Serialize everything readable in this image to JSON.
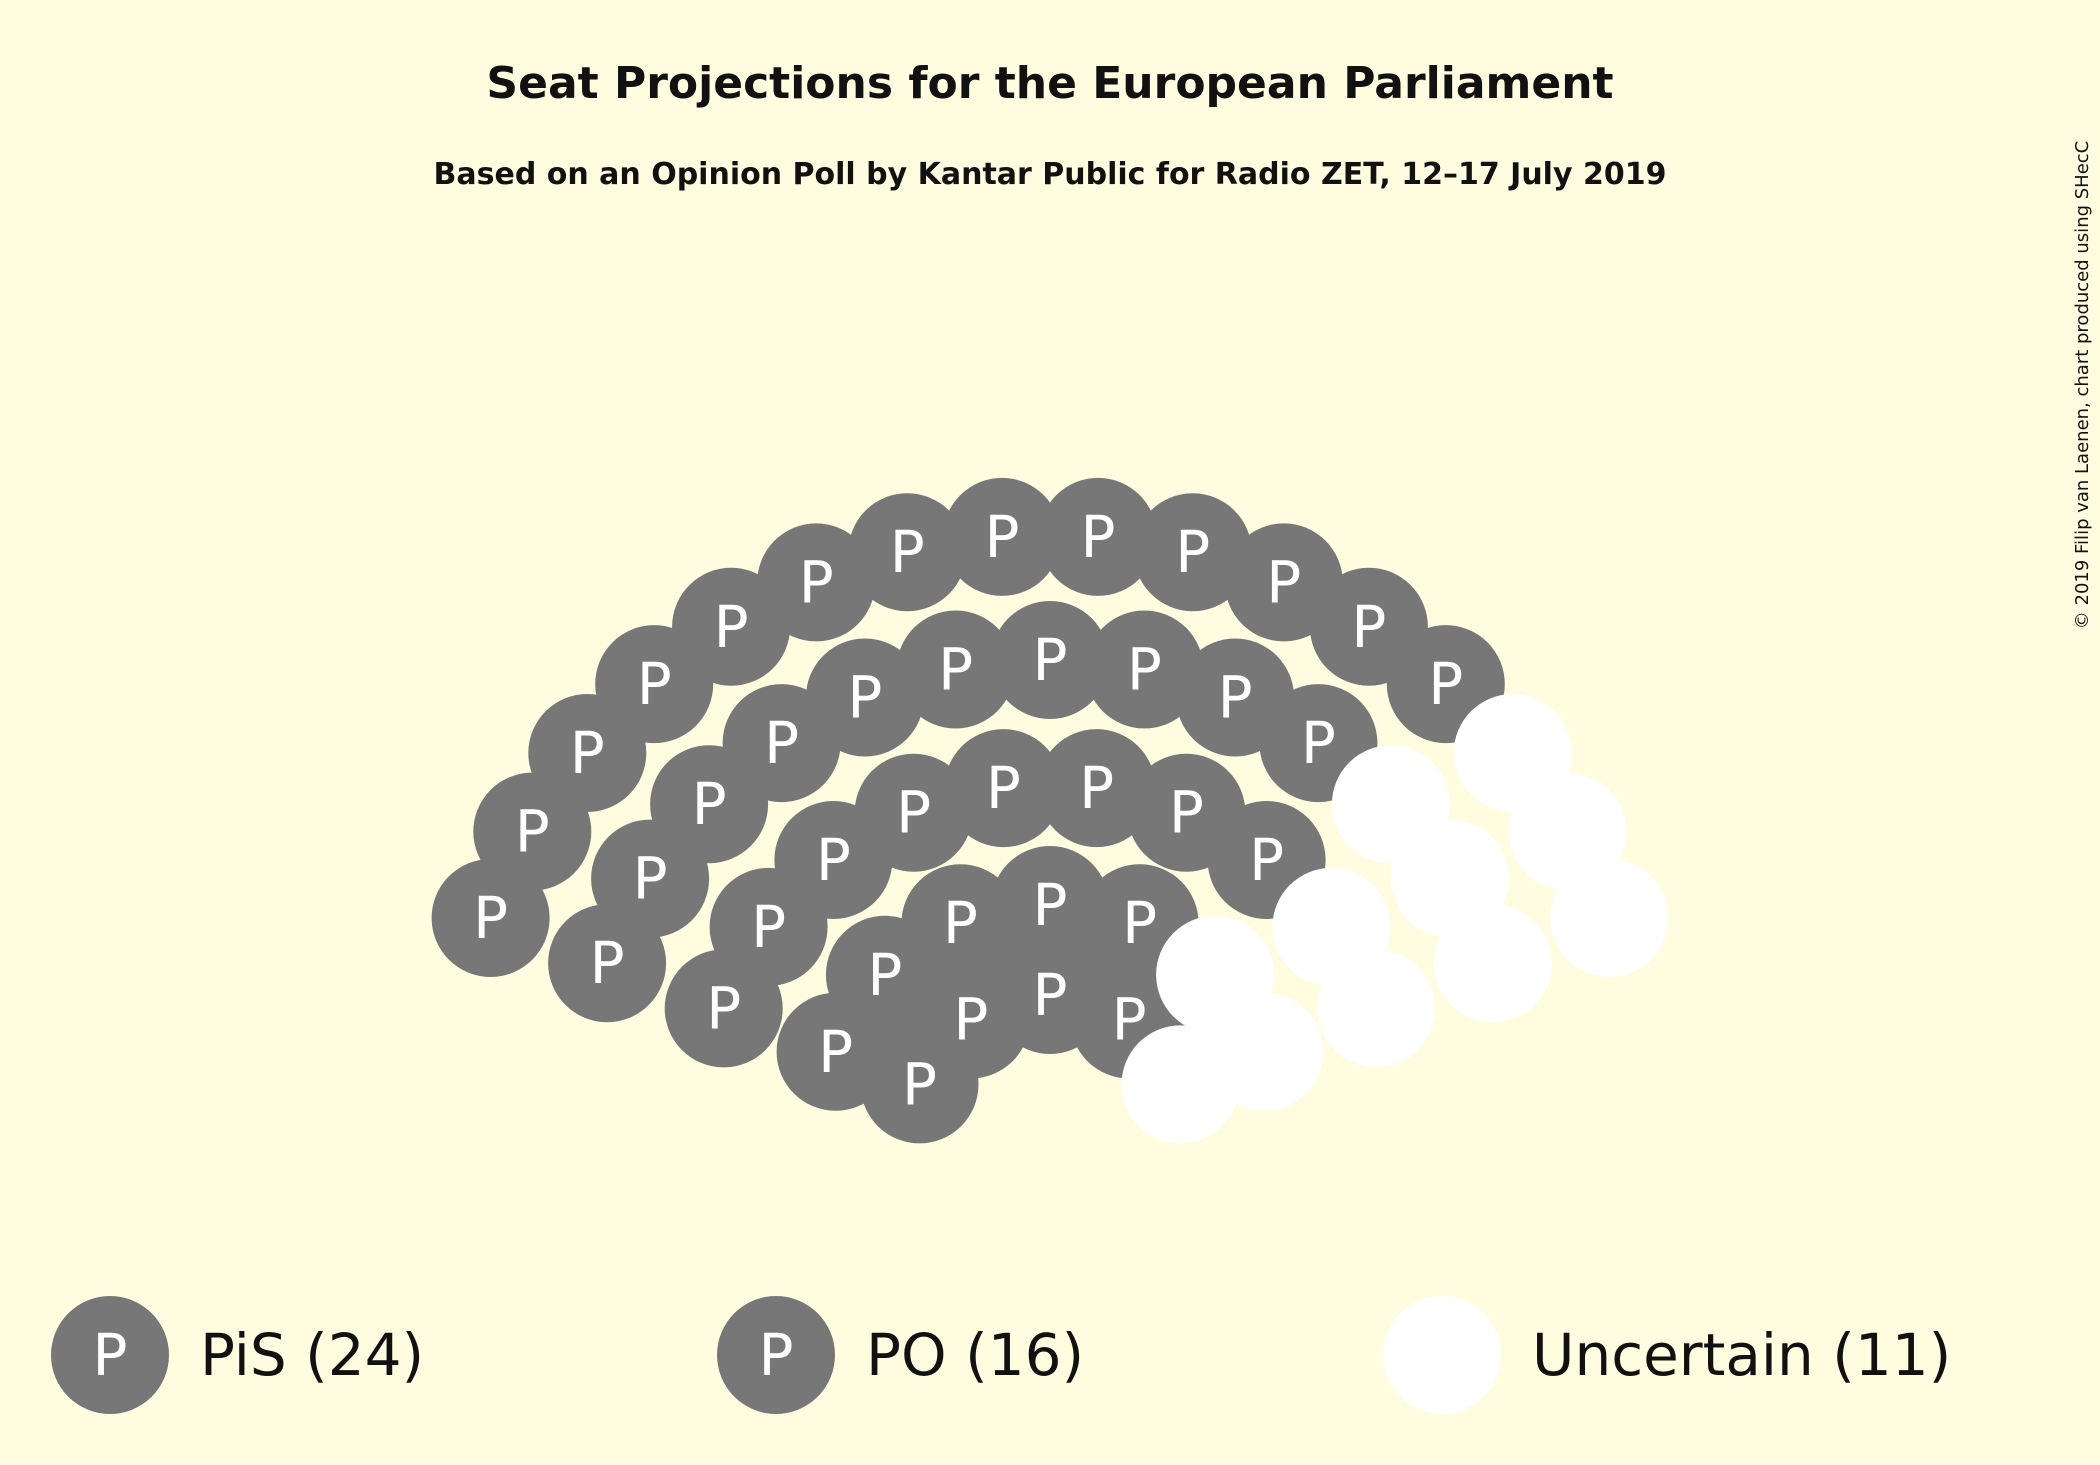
{
  "chart_data": {
    "type": "parliament",
    "title": "Seat Projections for the European Parliament",
    "subtitle": "Based on an Opinion Poll by Kantar Public for Radio ZET, 12–17 July 2019",
    "credit": "© 2019 Filip van Laenen, chart produced using SHecC",
    "total_seats": 51,
    "series": [
      {
        "name": "PiS",
        "seats": 24,
        "symbol": "P",
        "color": "#777777",
        "legend": "PiS (24)"
      },
      {
        "name": "PO",
        "seats": 16,
        "symbol": "P",
        "color": "#777777",
        "legend": "PO (16)"
      },
      {
        "name": "Uncertain",
        "seats": 11,
        "symbol": "",
        "color": "#ffffff",
        "legend": "Uncertain (11)"
      }
    ]
  }
}
